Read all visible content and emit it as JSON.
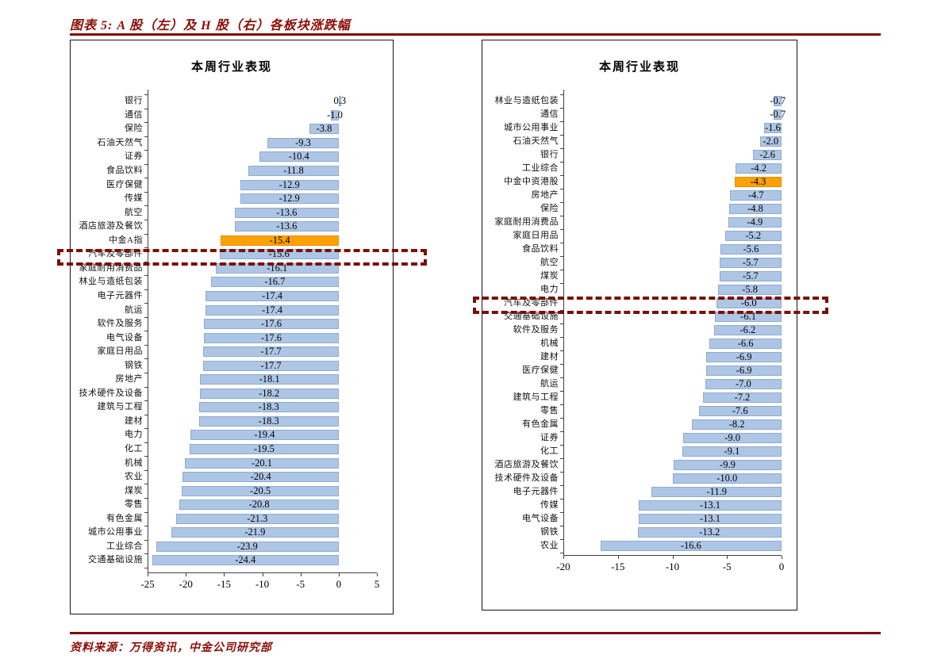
{
  "page": {
    "figure_title": "图表 5: A 股（左）及 H 股（右）各板块涨跌幅",
    "source_note": "资料来源：万得资讯，中金公司研究部",
    "accent_color": "#8b0f06",
    "bar_color": "#aec6e6",
    "highlight_color": "#ffa201",
    "annotation_color": "#7a1008"
  },
  "chart_data": [
    {
      "id": "a_share",
      "type": "bar",
      "orientation": "horizontal",
      "title": "本周行业表现",
      "xlim": [
        -25,
        5
      ],
      "xticks": [
        -25,
        -20,
        -15,
        -10,
        -5,
        0,
        5
      ],
      "grid": false,
      "legend": false,
      "highlight_category": "中金A指",
      "annotated_category": "汽车及零部件",
      "categories": [
        "银行",
        "通信",
        "保险",
        "石油天然气",
        "证券",
        "食品饮料",
        "医疗保健",
        "传媒",
        "航空",
        "酒店旅游及餐饮",
        "中金A指",
        "汽车及零部件",
        "家庭耐用消费品",
        "林业与造纸包装",
        "电子元器件",
        "航运",
        "软件及服务",
        "电气设备",
        "家庭日用品",
        "钢铁",
        "房地产",
        "技术硬件及设备",
        "建筑与工程",
        "建材",
        "电力",
        "化工",
        "机械",
        "农业",
        "煤炭",
        "零售",
        "有色金属",
        "城市公用事业",
        "工业综合",
        "交通基础设施"
      ],
      "values": [
        0.3,
        -1.0,
        -3.8,
        -9.3,
        -10.4,
        -11.8,
        -12.9,
        -12.9,
        -13.6,
        -13.6,
        -15.4,
        -15.6,
        -16.1,
        -16.7,
        -17.4,
        -17.4,
        -17.6,
        -17.6,
        -17.7,
        -17.7,
        -18.1,
        -18.2,
        -18.3,
        -18.3,
        -19.4,
        -19.5,
        -20.1,
        -20.4,
        -20.5,
        -20.8,
        -21.3,
        -21.9,
        -23.9,
        -24.4
      ]
    },
    {
      "id": "h_share",
      "type": "bar",
      "orientation": "horizontal",
      "title": "本周行业表现",
      "xlim": [
        -20,
        0
      ],
      "xticks": [
        -20,
        -15,
        -10,
        -5,
        0
      ],
      "grid": false,
      "legend": false,
      "highlight_category": "中金中资港股",
      "annotated_category": "汽车及零部件",
      "categories": [
        "林业与造纸包装",
        "通信",
        "城市公用事业",
        "石油天然气",
        "银行",
        "工业综合",
        "中金中资港股",
        "房地产",
        "保险",
        "家庭耐用消费品",
        "家庭日用品",
        "食品饮料",
        "航空",
        "煤炭",
        "电力",
        "汽车及零部件",
        "交通基础设施",
        "软件及服务",
        "机械",
        "建材",
        "医疗保健",
        "航运",
        "建筑与工程",
        "零售",
        "有色金属",
        "证券",
        "化工",
        "酒店旅游及餐饮",
        "技术硬件及设备",
        "电子元器件",
        "传媒",
        "电气设备",
        "钢铁",
        "农业"
      ],
      "values": [
        -0.7,
        -0.7,
        -1.6,
        -2.0,
        -2.6,
        -4.2,
        -4.3,
        -4.7,
        -4.8,
        -4.9,
        -5.2,
        -5.6,
        -5.7,
        -5.7,
        -5.8,
        -6.0,
        -6.1,
        -6.2,
        -6.6,
        -6.9,
        -6.9,
        -7.0,
        -7.2,
        -7.6,
        -8.2,
        -9.0,
        -9.1,
        -9.9,
        -10.0,
        -11.9,
        -13.1,
        -13.1,
        -13.2,
        -16.6
      ]
    }
  ]
}
